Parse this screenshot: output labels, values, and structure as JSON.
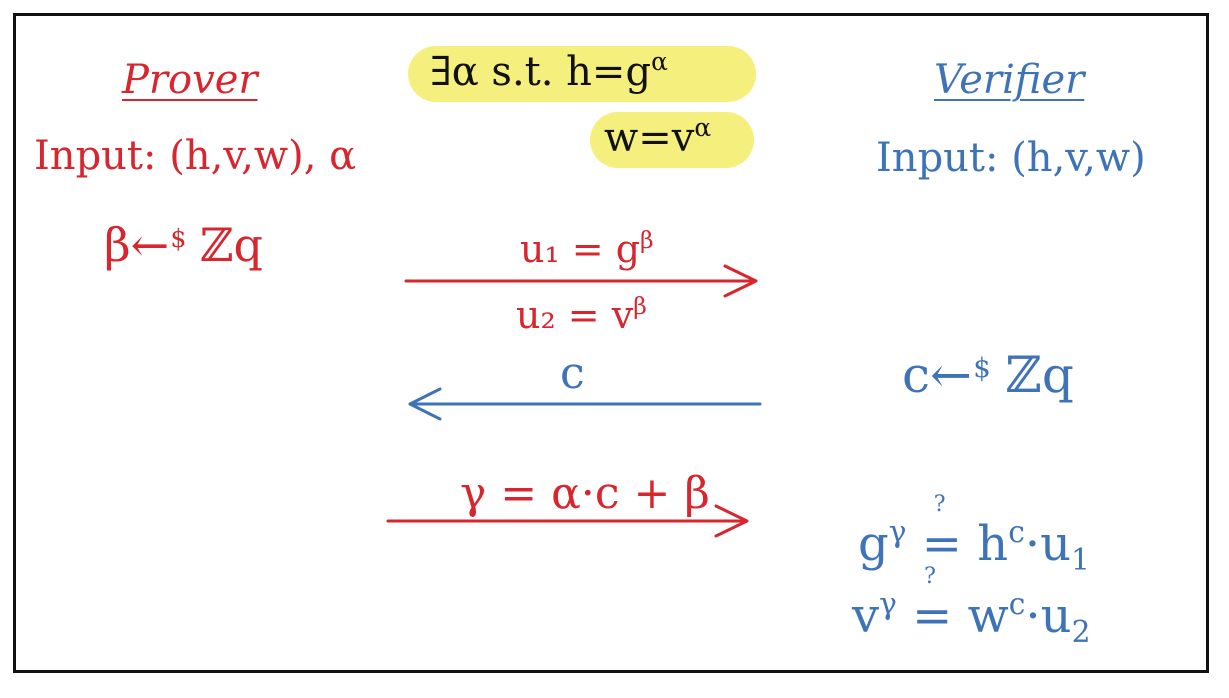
{
  "prover": {
    "title": "Prover",
    "input_label": "Input:",
    "input_values": "(h,v,w), α",
    "beta_var": "β",
    "sample_symbol": "←",
    "sample_marker": "$",
    "group": "ℤq"
  },
  "statement": {
    "line1_prefix": "∃α s.t. h=g",
    "line1_exp": "α",
    "line2_base": "w=v",
    "line2_exp": "α"
  },
  "verifier": {
    "title": "Verifier",
    "input_label": "Input:",
    "input_values": "(h,v,w)",
    "c_var": "c",
    "sample_symbol": "←",
    "sample_marker": "$",
    "group": "ℤq",
    "check1": {
      "base": "g",
      "exp": "γ",
      "op": "≟",
      "rhs_base": "h",
      "rhs_exp": "c",
      "rhs_tail": "·u",
      "rhs_sub": "1",
      "question": "?"
    },
    "check2": {
      "base": "v",
      "exp": "γ",
      "op": "≟",
      "rhs_base": "w",
      "rhs_exp": "c",
      "rhs_tail": "·u",
      "rhs_sub": "2",
      "question": "?"
    }
  },
  "messages": {
    "msg1_top": "u₁ = g",
    "msg1_top_exp": "β",
    "msg1_bottom": "u₂ = v",
    "msg1_bottom_exp": "β",
    "msg2": "c",
    "msg3": "γ = α·c + β"
  },
  "colors": {
    "prover": "#d7262e",
    "verifier": "#3f73b8",
    "highlight": "#f5ef7e",
    "border": "#111111"
  }
}
